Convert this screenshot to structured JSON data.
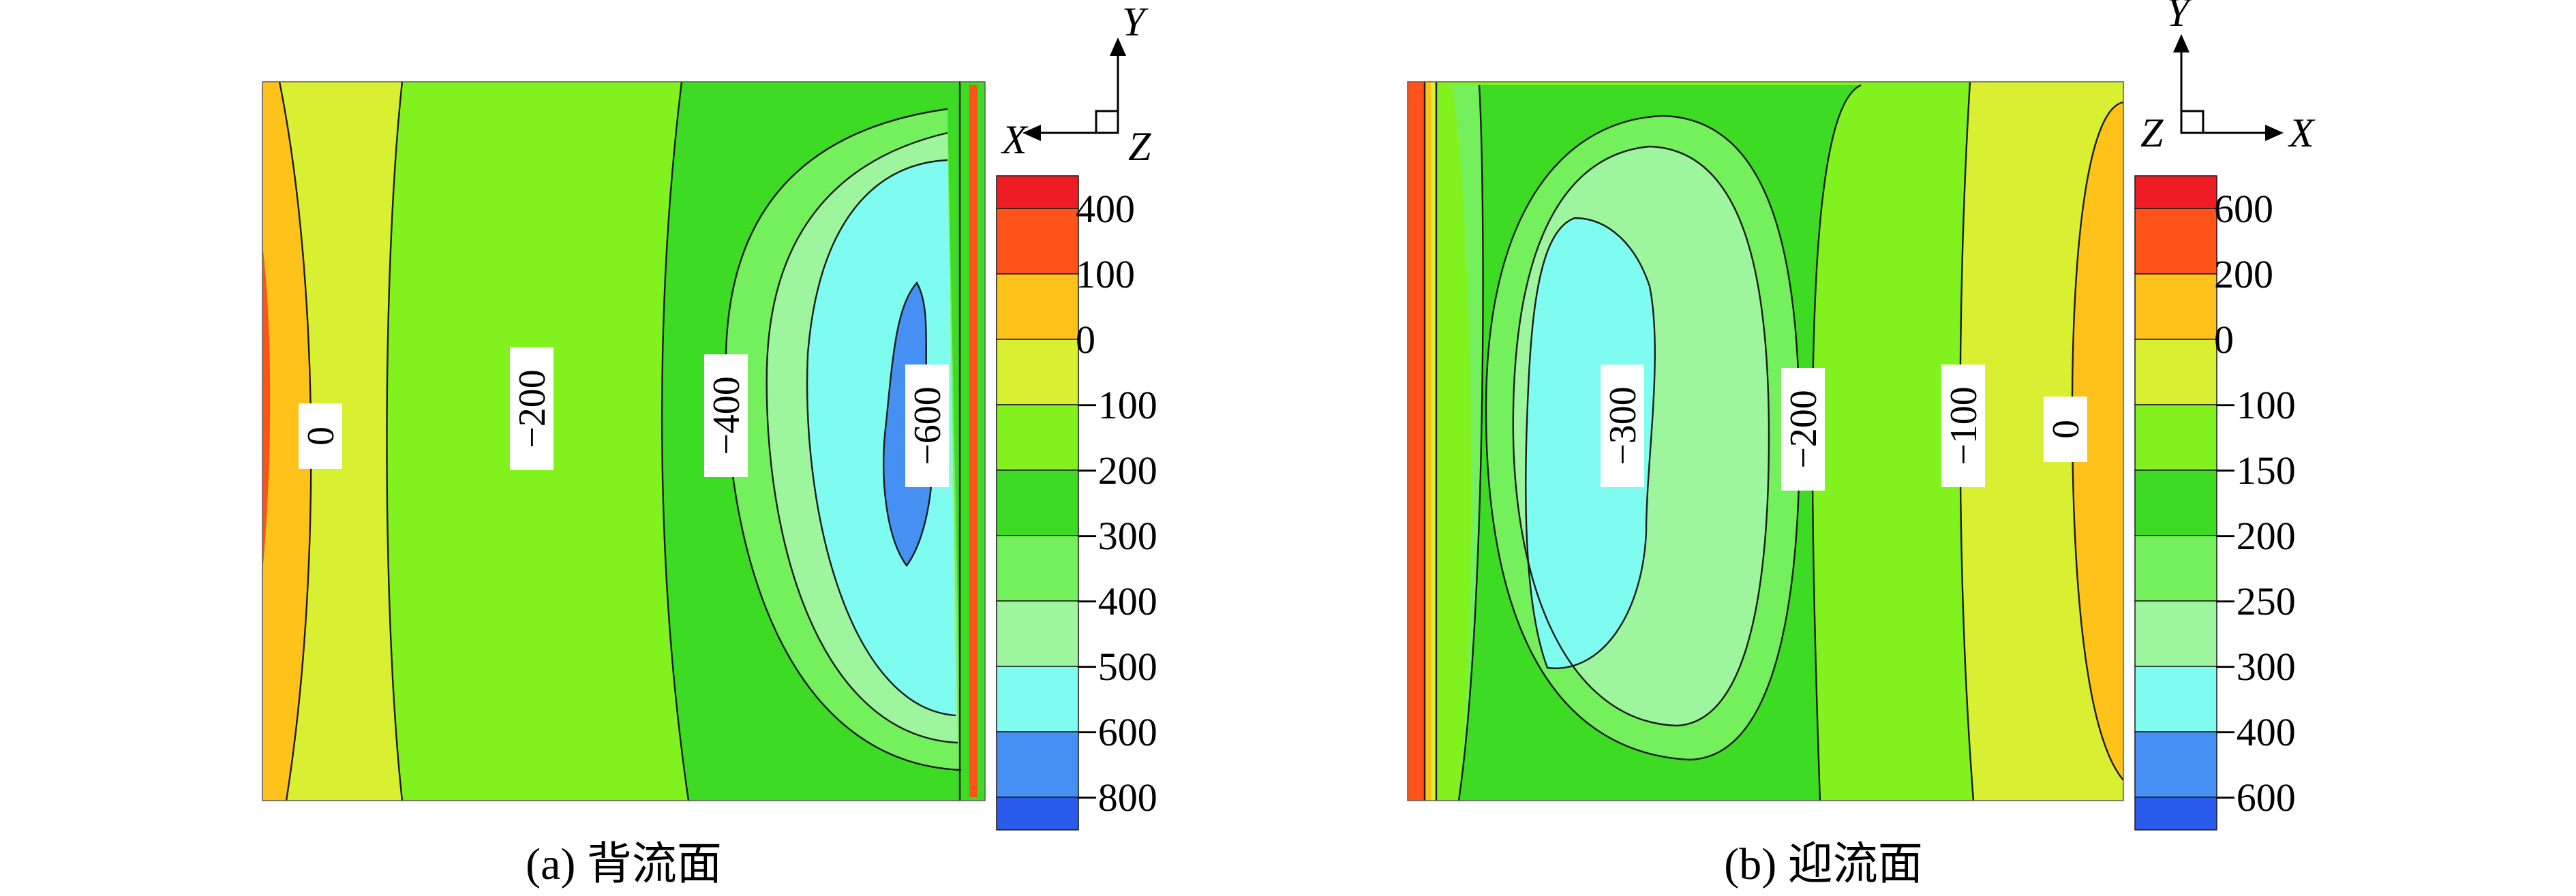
{
  "chart_data": [
    {
      "type": "heatmap",
      "caption": "(a) 背流面",
      "axis_triad": {
        "vertical": "Y",
        "horizontal": "X",
        "depth": "Z"
      },
      "legend": {
        "labels": [
          "400",
          "100",
          "0",
          "−100",
          "−200",
          "−300",
          "−400",
          "−500",
          "−600",
          "−800"
        ],
        "colors": [
          "#EE1C24",
          "#FF5319",
          "#FFC21A",
          "#D8F031",
          "#82F21F",
          "#3DDB24",
          "#74F05C",
          "#9DF59D",
          "#7EFCEF",
          "#4590F2",
          "#2A5BEC"
        ]
      },
      "contour_labels": [
        "0",
        "−200",
        "−400",
        "−600"
      ]
    },
    {
      "type": "heatmap",
      "caption": "(b) 迎流面",
      "axis_triad": {
        "vertical": "Y",
        "horizontal": "X",
        "depth": "Z"
      },
      "legend": {
        "labels": [
          "600",
          "200",
          "0",
          "−100",
          "−150",
          "−200",
          "−250",
          "−300",
          "−400",
          "−600"
        ],
        "colors": [
          "#EE1C24",
          "#FF5319",
          "#FFC21A",
          "#D8F031",
          "#82F21F",
          "#3DDB24",
          "#74F05C",
          "#9DF59D",
          "#7EFCEF",
          "#4590F2",
          "#2A5BEC"
        ]
      },
      "contour_labels": [
        "−300",
        "−200",
        "−100",
        "0"
      ]
    }
  ]
}
